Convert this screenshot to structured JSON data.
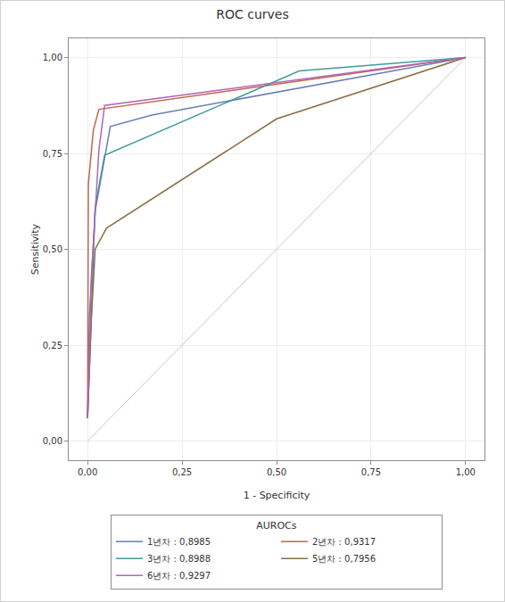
{
  "chart_data": {
    "type": "line",
    "title": "ROC curves",
    "x_label": "1 - Specificity",
    "y_label": "Sensitivity",
    "legend_title": "AUROCs",
    "legend": "bottom",
    "grid": true,
    "xlim": [
      -0.05,
      1.05
    ],
    "ylim": [
      -0.05,
      1.05
    ],
    "xticks": [
      {
        "value": 0,
        "label": "0,00"
      },
      {
        "value": 0.25,
        "label": "0,25"
      },
      {
        "value": 0.5,
        "label": "0,50"
      },
      {
        "value": 0.75,
        "label": "0,75"
      },
      {
        "value": 1,
        "label": "1,00"
      }
    ],
    "yticks": [
      {
        "value": 0,
        "label": "0,00"
      },
      {
        "value": 0.25,
        "label": "0,25"
      },
      {
        "value": 0.5,
        "label": "0,50"
      },
      {
        "value": 0.75,
        "label": "0,75"
      },
      {
        "value": 1,
        "label": "1,00"
      }
    ],
    "reference_line": {
      "x": [
        0,
        1
      ],
      "y": [
        0,
        1
      ],
      "color": "#c8c8c8"
    },
    "series": [
      {
        "name": "1년차 : 0,8985",
        "color": "#6a7db6",
        "x": [
          0,
          0.005,
          0.02,
          0.06,
          0.17,
          1
        ],
        "values": [
          0.06,
          0.33,
          0.6,
          0.82,
          0.85,
          1
        ]
      },
      {
        "name": "2년차 : 0,9317",
        "color": "#c4634f",
        "x": [
          0,
          0.002,
          0.015,
          0.03,
          1
        ],
        "values": [
          0.06,
          0.67,
          0.81,
          0.865,
          1
        ]
      },
      {
        "name": "3년차 : 0,8988",
        "color": "#3f9b9b",
        "x": [
          0,
          0.02,
          0.045,
          0.56,
          1
        ],
        "values": [
          0.06,
          0.61,
          0.745,
          0.965,
          1
        ]
      },
      {
        "name": "5년차 : 0,7956",
        "color": "#8b6e45",
        "x": [
          0,
          0.01,
          0.02,
          0.05,
          0.5,
          1
        ],
        "values": [
          0.06,
          0.32,
          0.5,
          0.555,
          0.84,
          1
        ]
      },
      {
        "name": "6년차 : 0,9297",
        "color": "#b164b8",
        "x": [
          0,
          0.01,
          0.03,
          0.045,
          1
        ],
        "values": [
          0.06,
          0.43,
          0.76,
          0.875,
          1
        ]
      }
    ]
  }
}
